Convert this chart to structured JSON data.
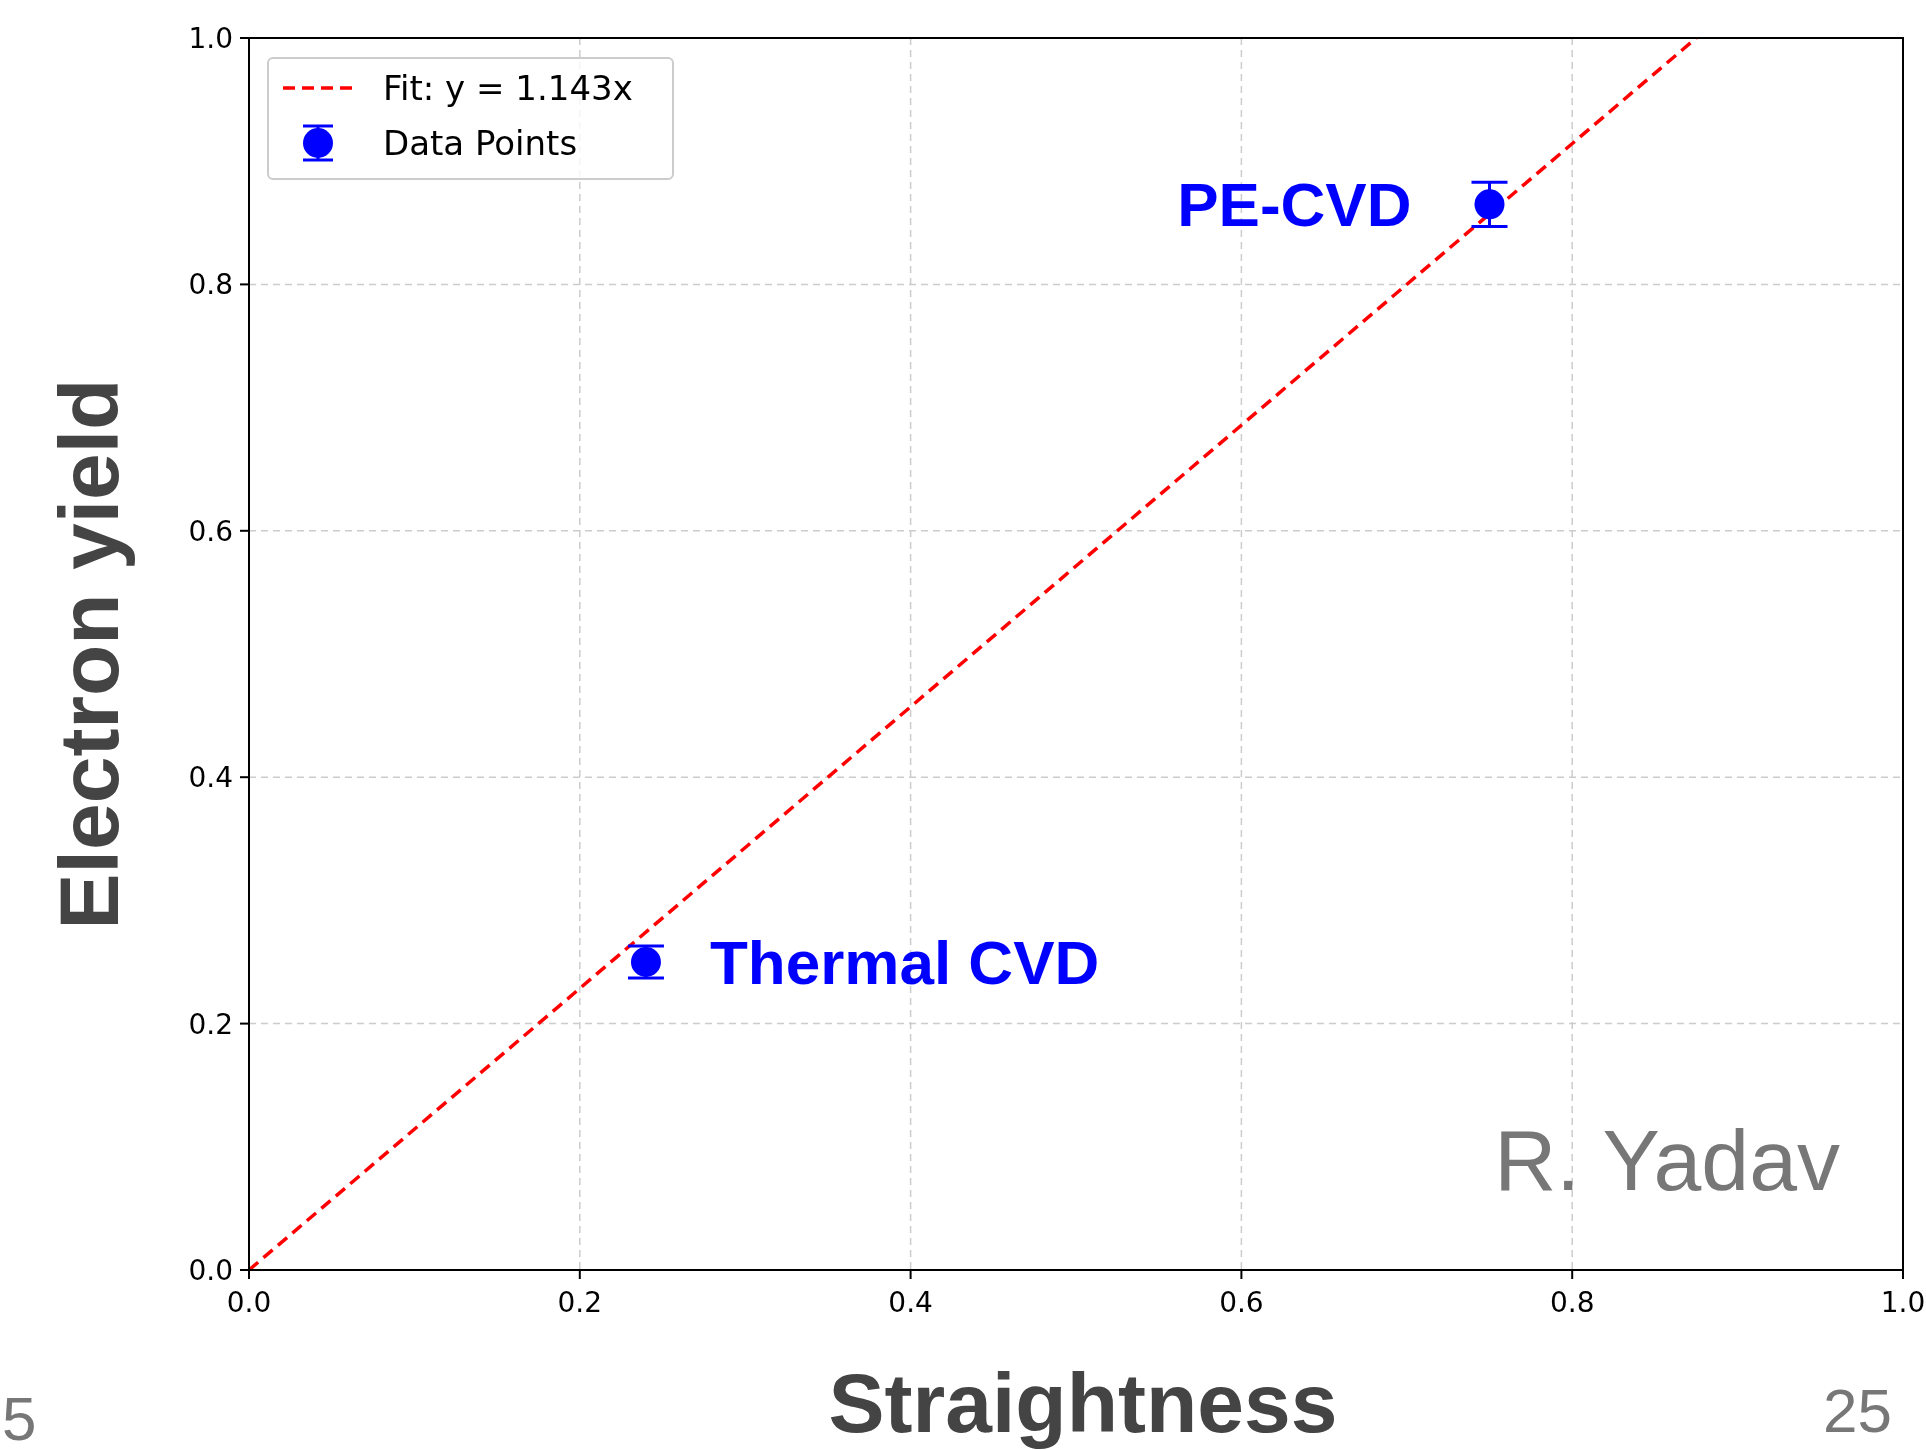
{
  "chart_data": {
    "type": "scatter",
    "xlabel": "Straightness",
    "ylabel": "Electron yield",
    "xlim": [
      0,
      1
    ],
    "ylim": [
      0,
      1
    ],
    "xticks": [
      {
        "value": 0,
        "label": "0.0"
      },
      {
        "value": 0.2,
        "label": "0.2"
      },
      {
        "value": 0.4,
        "label": "0.4"
      },
      {
        "value": 0.6,
        "label": "0.6"
      },
      {
        "value": 0.8,
        "label": "0.8"
      },
      {
        "value": 1,
        "label": "1.0"
      }
    ],
    "yticks": [
      {
        "value": 0,
        "label": "0.0"
      },
      {
        "value": 0.2,
        "label": "0.2"
      },
      {
        "value": 0.4,
        "label": "0.4"
      },
      {
        "value": 0.6,
        "label": "0.6"
      },
      {
        "value": 0.8,
        "label": "0.8"
      },
      {
        "value": 1,
        "label": "1.0"
      }
    ],
    "grid": true,
    "legend": "top left",
    "series": [
      {
        "type": "line",
        "name": "Fit: y = 1.143x",
        "color": "#ff0000",
        "line_style": "dashed",
        "marker": "none",
        "x": [
          0,
          0.875
        ],
        "values": [
          0,
          1.0
        ]
      },
      {
        "name": "Data Points",
        "color": "#0000ff",
        "marker": "circle",
        "x": [
          0.24,
          0.75
        ],
        "values": [
          0.25,
          0.865
        ],
        "errors": [
          0.013,
          0.018
        ]
      }
    ],
    "annotations": [
      {
        "text": "Thermal CVD",
        "x": 0.24,
        "y": 0.25
      },
      {
        "text": "PE-CVD",
        "x": 0.75,
        "y": 0.865
      },
      "R. Yadav",
      "5",
      "25"
    ]
  }
}
